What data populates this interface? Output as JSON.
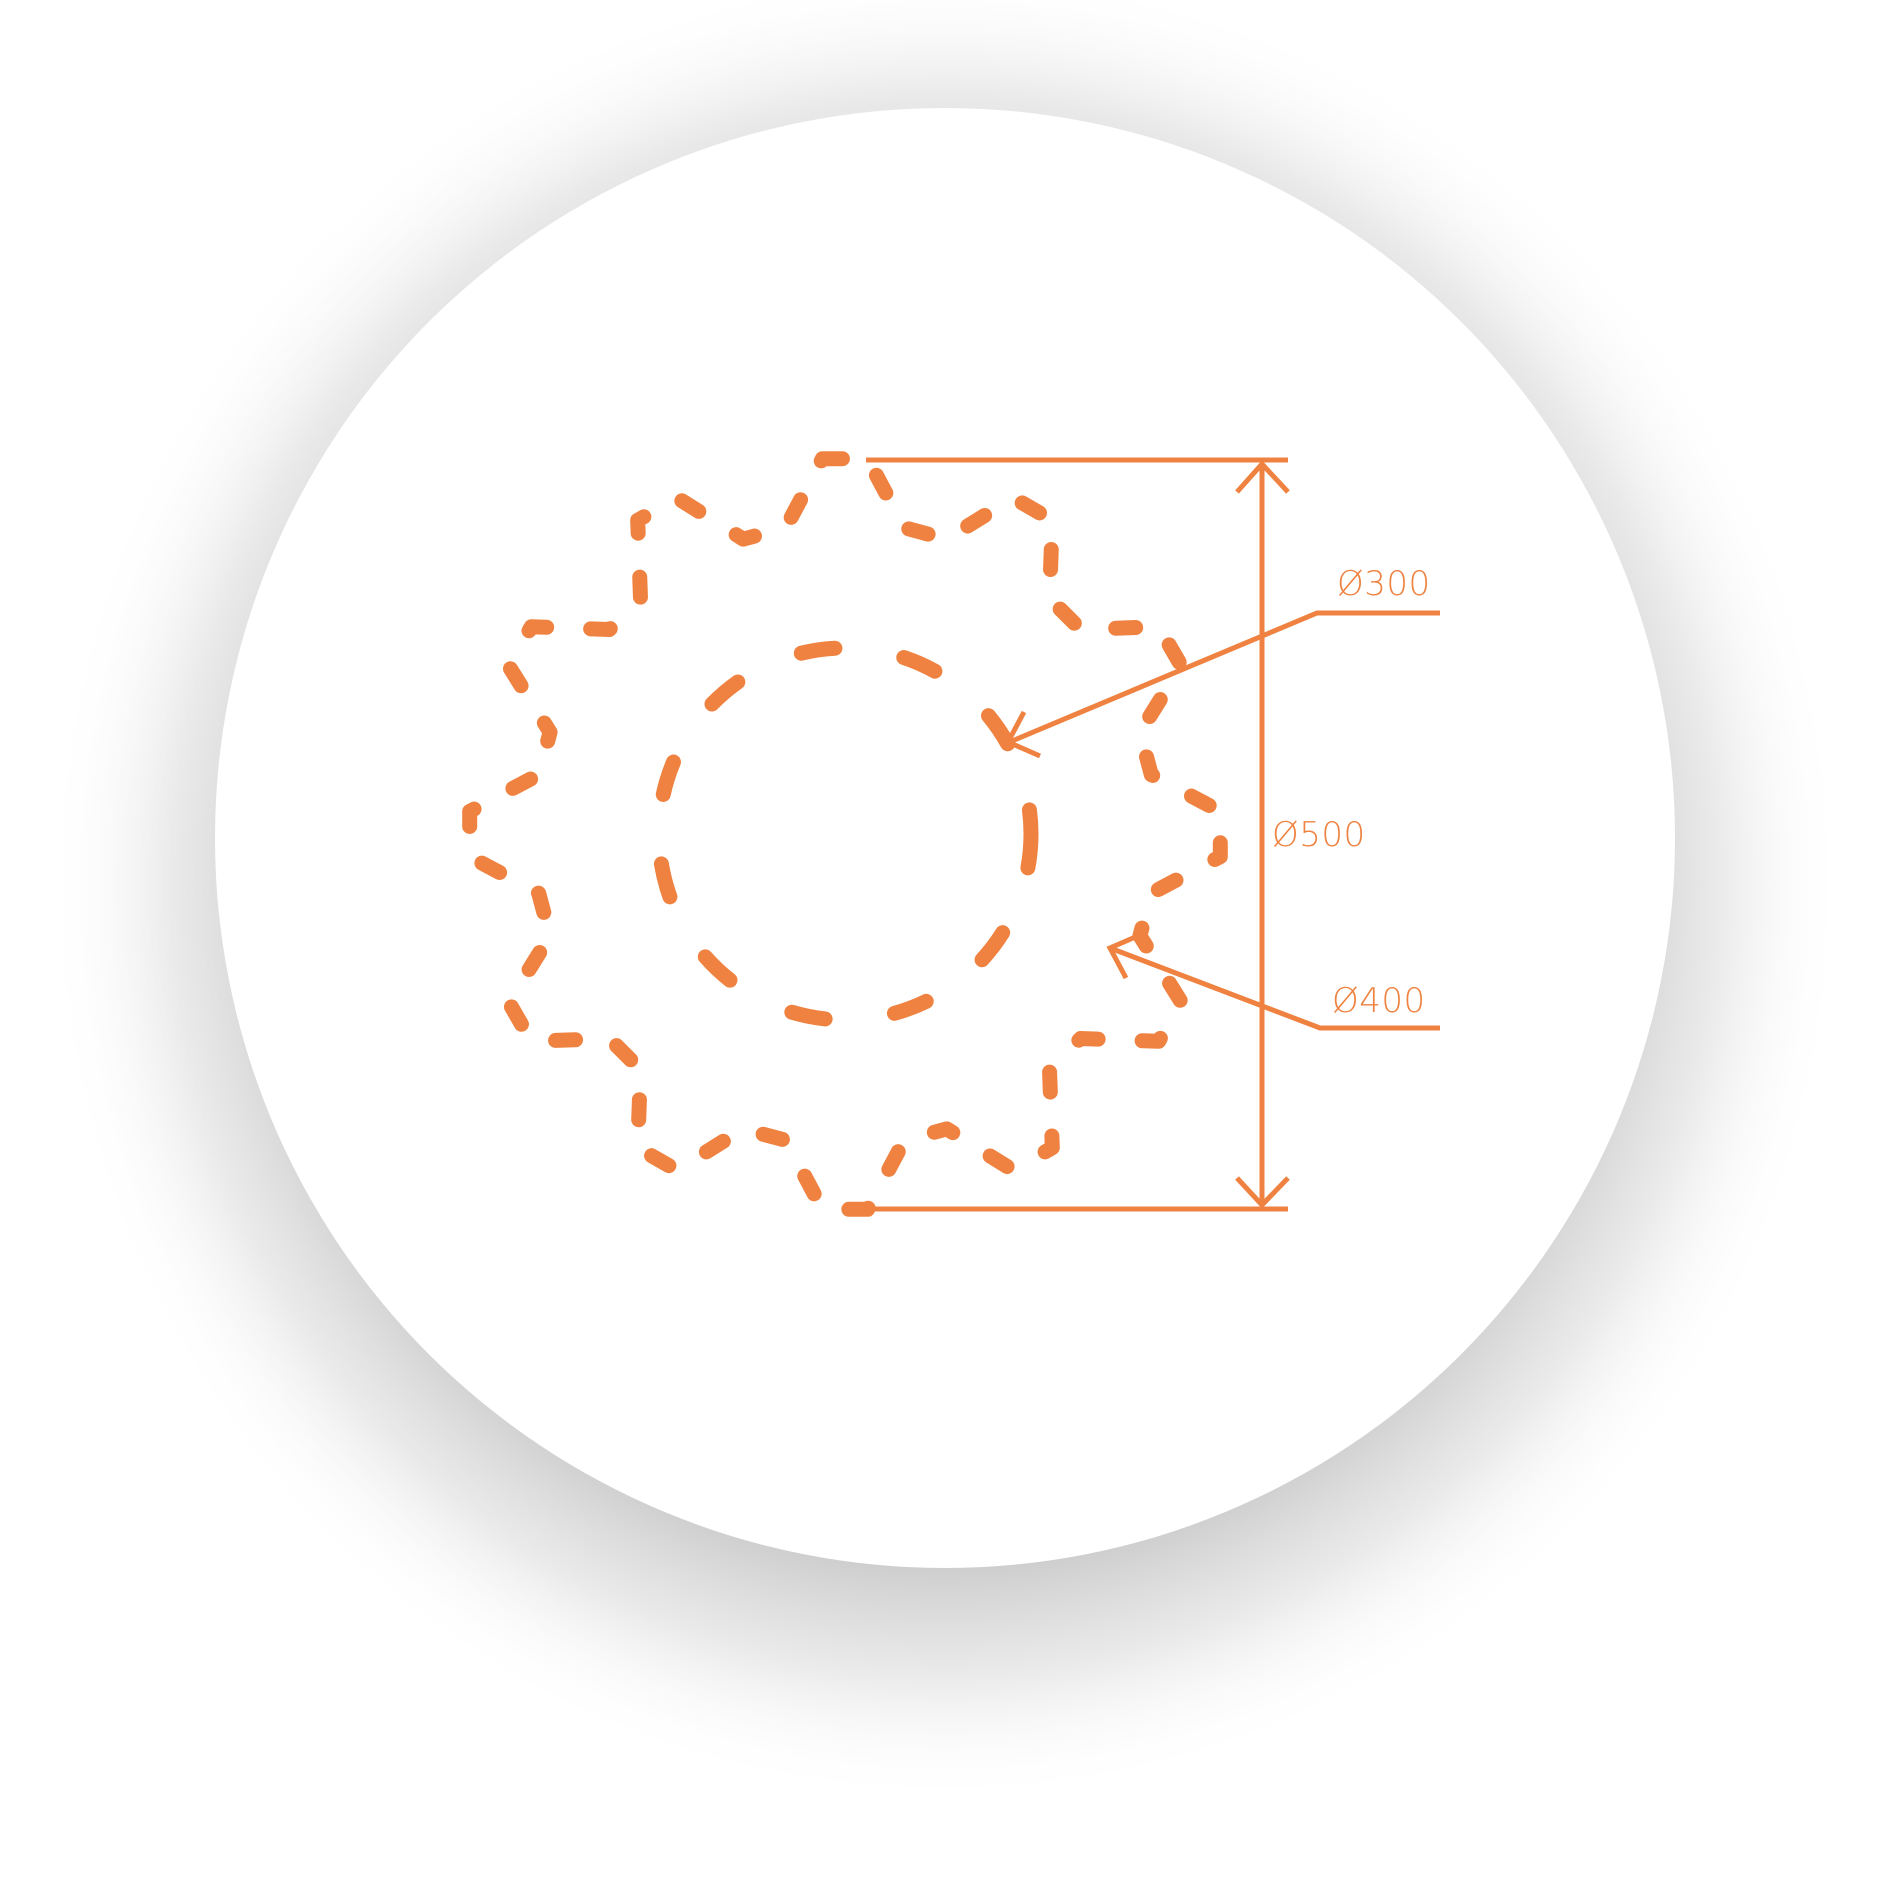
{
  "diagram": {
    "colors": {
      "accent": "#EF8240",
      "background": "#FFFFFF",
      "shadow": "#9a9a9a"
    },
    "shapes": [
      {
        "name": "outer-gear-outline",
        "style": "dashed",
        "teeth": 12
      },
      {
        "name": "inner-circle-outline",
        "style": "dashed"
      }
    ],
    "dimensions": [
      {
        "name": "diameter-500",
        "label": "Ø500",
        "kind": "vertical-extent"
      },
      {
        "name": "diameter-300",
        "label": "Ø300",
        "kind": "leader-to-inner-circle"
      },
      {
        "name": "diameter-400",
        "label": "Ø400",
        "kind": "leader-to-tooth-root"
      }
    ]
  }
}
